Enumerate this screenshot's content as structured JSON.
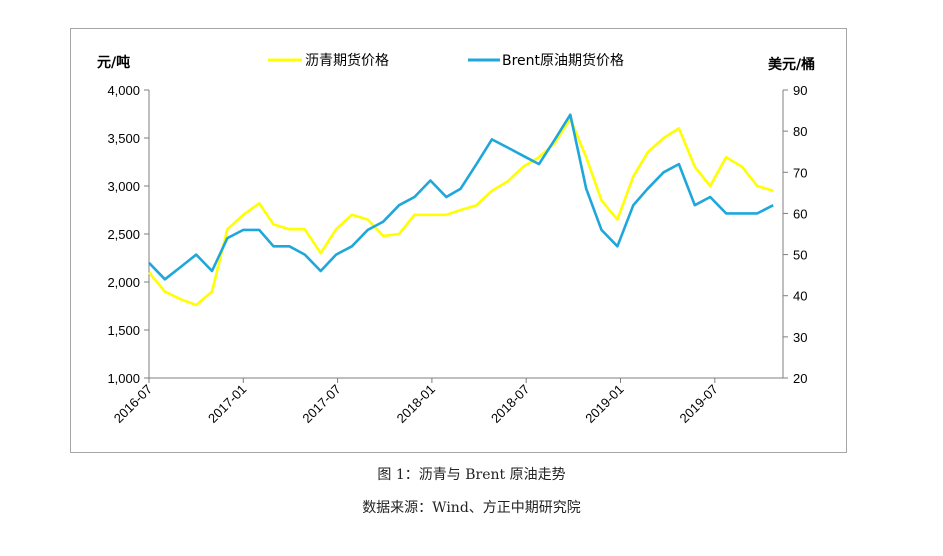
{
  "figure": {
    "caption": "图 1：沥青与 Brent 原油走势",
    "source": "数据来源：Wind、方正中期研究院"
  },
  "chart_data": {
    "type": "line",
    "left_axis_label": "元/吨",
    "right_axis_label": "美元/桶",
    "left_ylim": [
      1000,
      4000
    ],
    "right_ylim": [
      20,
      90
    ],
    "left_ticks": [
      "1,000",
      "1,500",
      "2,000",
      "2,500",
      "3,000",
      "3,500",
      "4,000"
    ],
    "right_ticks": [
      "20",
      "30",
      "40",
      "50",
      "60",
      "70",
      "80",
      "90"
    ],
    "x_ticks": [
      "2016-07",
      "2017-01",
      "2017-07",
      "2018-01",
      "2018-07",
      "2019-01",
      "2019-07"
    ],
    "x_range": [
      "2016-07",
      "2019-11"
    ],
    "grid": false,
    "legend_position": "top",
    "series": [
      {
        "name": "沥青期货价格",
        "axis": "left",
        "color": "#ffff00",
        "x": [
          "2016-07-01",
          "2016-08-01",
          "2016-09-01",
          "2016-10-01",
          "2016-11-01",
          "2016-12-01",
          "2017-01-01",
          "2017-02-01",
          "2017-03-01",
          "2017-04-01",
          "2017-05-01",
          "2017-06-01",
          "2017-07-01",
          "2017-08-01",
          "2017-09-01",
          "2017-10-01",
          "2017-11-01",
          "2017-12-01",
          "2018-01-01",
          "2018-02-01",
          "2018-03-01",
          "2018-04-01",
          "2018-05-01",
          "2018-06-01",
          "2018-07-01",
          "2018-08-01",
          "2018-09-01",
          "2018-10-01",
          "2018-11-01",
          "2018-12-01",
          "2019-01-01",
          "2019-02-01",
          "2019-03-01",
          "2019-04-01",
          "2019-05-01",
          "2019-06-01",
          "2019-07-01",
          "2019-08-01",
          "2019-09-01",
          "2019-10-01",
          "2019-11-01"
        ],
        "values": [
          2100,
          1900,
          1820,
          1760,
          1900,
          2550,
          2700,
          2820,
          2600,
          2550,
          2550,
          2300,
          2550,
          2700,
          2650,
          2480,
          2500,
          2700,
          2700,
          2700,
          2750,
          2800,
          2950,
          3050,
          3200,
          3300,
          3450,
          3700,
          3300,
          2850,
          2650,
          3100,
          3350,
          3500,
          3600,
          3200,
          3000,
          3300,
          3200,
          3000,
          2950
        ]
      },
      {
        "name": "Brent原油期货价格",
        "axis": "right",
        "color": "#1fa7db",
        "x": [
          "2016-07-01",
          "2016-08-01",
          "2016-09-01",
          "2016-10-01",
          "2016-11-01",
          "2016-12-01",
          "2017-01-01",
          "2017-02-01",
          "2017-03-01",
          "2017-04-01",
          "2017-05-01",
          "2017-06-01",
          "2017-07-01",
          "2017-08-01",
          "2017-09-01",
          "2017-10-01",
          "2017-11-01",
          "2017-12-01",
          "2018-01-01",
          "2018-02-01",
          "2018-03-01",
          "2018-04-01",
          "2018-05-01",
          "2018-06-01",
          "2018-07-01",
          "2018-08-01",
          "2018-09-01",
          "2018-10-01",
          "2018-11-01",
          "2018-12-01",
          "2019-01-01",
          "2019-02-01",
          "2019-03-01",
          "2019-04-01",
          "2019-05-01",
          "2019-06-01",
          "2019-07-01",
          "2019-08-01",
          "2019-09-01",
          "2019-10-01",
          "2019-11-01"
        ],
        "values": [
          48,
          44,
          47,
          50,
          46,
          54,
          56,
          56,
          52,
          52,
          50,
          46,
          50,
          52,
          56,
          58,
          62,
          64,
          68,
          64,
          66,
          72,
          78,
          76,
          74,
          72,
          78,
          84,
          66,
          56,
          52,
          62,
          66,
          70,
          72,
          62,
          64,
          60,
          60,
          60,
          62
        ]
      }
    ]
  }
}
